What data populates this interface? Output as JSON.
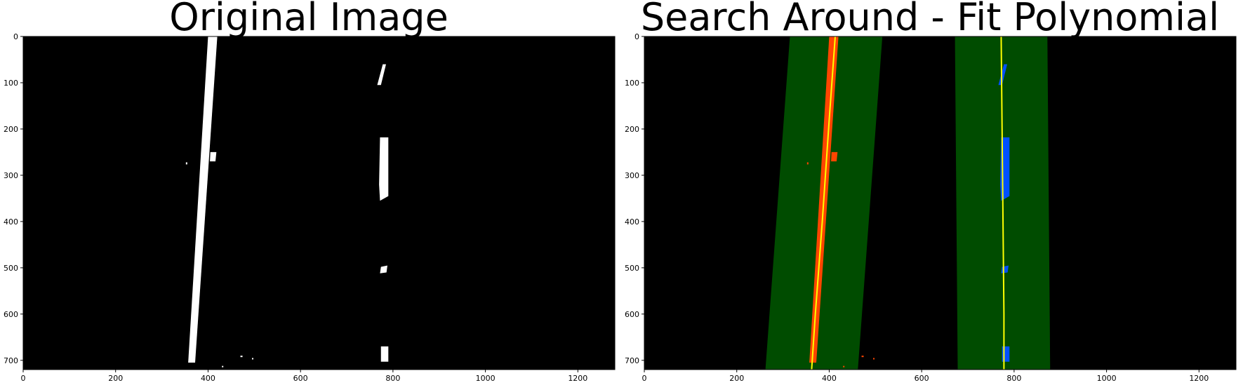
{
  "figure": {
    "panels": [
      {
        "title": "Original Image"
      },
      {
        "title": "Search Around - Fit Polynomial"
      }
    ],
    "axes": {
      "x_ticks": [
        0,
        200,
        400,
        600,
        800,
        1000,
        1200
      ],
      "y_ticks": [
        0,
        100,
        200,
        300,
        400,
        500,
        600,
        700
      ],
      "x_range": [
        0,
        1280
      ],
      "y_range": [
        0,
        720
      ]
    },
    "colors": {
      "background": "#000000",
      "lane_pixels": "#ffffff",
      "search_margin": "#004c00",
      "left_lane_pixels": "#ff4500",
      "right_lane_pixels": "#0050ff",
      "fit_line": "#ffff00"
    }
  }
}
